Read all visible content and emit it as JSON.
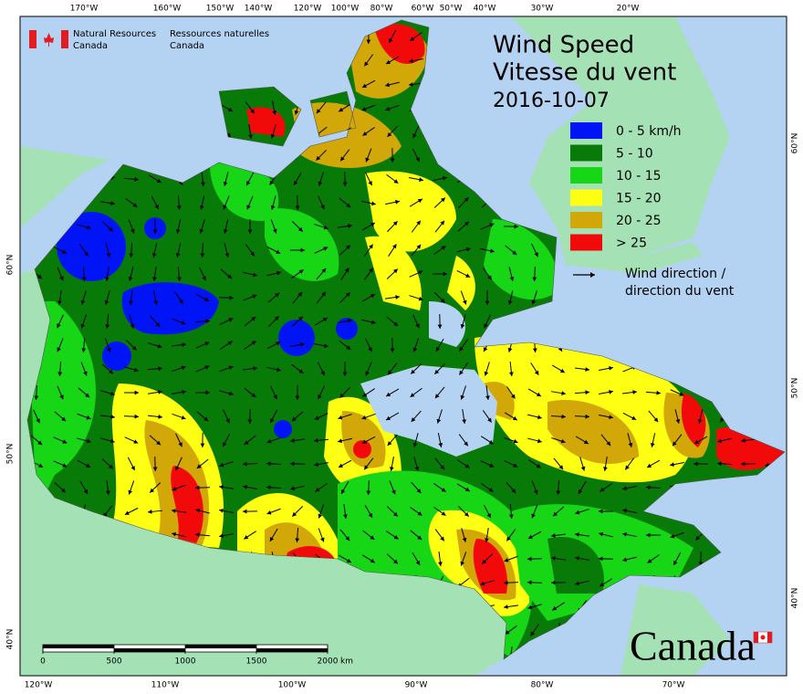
{
  "agency": {
    "en_line1": "Natural Resources",
    "en_line2": "Canada",
    "fr_line1": "Ressources naturelles",
    "fr_line2": "Canada"
  },
  "title": {
    "line1": "Wind Speed",
    "line2": "Vitesse du vent",
    "date": "2016-10-07"
  },
  "legend": {
    "items": [
      {
        "label": "0 - 5 km/h",
        "color": "#0014f5"
      },
      {
        "label": "5 - 10",
        "color": "#087a08"
      },
      {
        "label": "10 - 15",
        "color": "#16d616"
      },
      {
        "label": "15 - 20",
        "color": "#ffff14"
      },
      {
        "label": "20 - 25",
        "color": "#d2a808"
      },
      {
        "label": "> 25",
        "color": "#f20a0a"
      }
    ],
    "arrow_line1": "Wind direction /",
    "arrow_line2": "direction du vent"
  },
  "top_labels": [
    "170°W",
    "160°W",
    "150°W",
    "140°W",
    "120°W",
    "100°W",
    "80°W",
    "60°W",
    "50°W",
    "40°W",
    "30°W",
    "20°W"
  ],
  "bottom_labels": [
    "120°W",
    "110°W",
    "100°W",
    "90°W",
    "80°W",
    "70°W"
  ],
  "left_labels": [
    "60°N",
    "50°N",
    "40°N"
  ],
  "right_labels": [
    "60°N",
    "50°N",
    "40°N"
  ],
  "scale_bar": {
    "ticks": [
      0,
      500,
      1000,
      1500,
      2000
    ],
    "unit": "km"
  },
  "wordmark": "Canada"
}
